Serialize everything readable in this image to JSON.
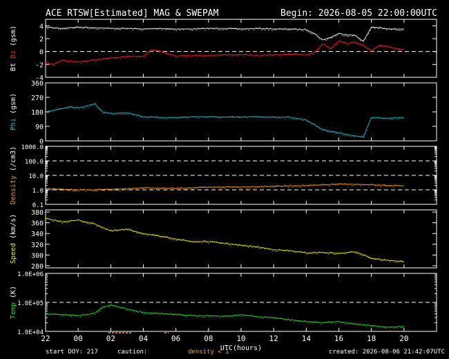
{
  "header": {
    "title": "ACE RTSW[Estimated] MAG & SWEPAM",
    "begin": "Begin: 2026-08-05 22:00:00UTC"
  },
  "footer": {
    "start_doy": "start DOY: 217",
    "caution": "caution:",
    "density_note": "density < 1",
    "created": "created: 2026-08-06 21:42:07UTC"
  },
  "colors": {
    "bt": "#ffffff",
    "bz": "#ff2020",
    "phi": "#22bbdd",
    "density": "#ff9922",
    "speed": "#eeee22",
    "temp": "#33dd33",
    "axes": "#ffffff",
    "caution": "#ff9922"
  },
  "chart_data": [
    {
      "type": "scatter",
      "ylabel_parts": [
        "Bt",
        "Bz",
        "(gsm)"
      ],
      "ylim": [
        -4,
        5
      ],
      "yticks": [
        4,
        2,
        0,
        -2,
        -4
      ],
      "ytick_labels": [
        "4",
        "2",
        "0",
        "-2",
        "-4"
      ],
      "dashed_lines": [
        0
      ],
      "series": [
        {
          "color_key": "bt",
          "x": [
            0,
            1,
            2,
            3,
            4,
            5,
            6,
            7,
            8,
            9,
            10,
            11,
            12,
            13,
            14,
            15,
            16,
            16.5,
            17,
            17.5,
            18,
            18.5,
            19,
            19.5,
            20,
            20.5,
            21,
            21.5,
            22
          ],
          "y": [
            3.8,
            3.6,
            3.8,
            3.7,
            3.6,
            3.6,
            3.5,
            3.6,
            3.5,
            3.5,
            3.6,
            3.6,
            3.5,
            3.6,
            3.5,
            3.5,
            3.4,
            2.8,
            1.8,
            2.2,
            2.8,
            2.6,
            2.5,
            1.6,
            3.8,
            3.7,
            3.5,
            3.5,
            3.5
          ]
        },
        {
          "color_key": "bz",
          "x": [
            0,
            0.5,
            1,
            2,
            3,
            4,
            5,
            6,
            6.5,
            7,
            8,
            9,
            10,
            11,
            12,
            13,
            14,
            15,
            16,
            16.5,
            17,
            17.5,
            18,
            18.5,
            19,
            19.5,
            20,
            20.5,
            21,
            21.5,
            22
          ],
          "y": [
            -1.7,
            -2.0,
            -1.4,
            -1.6,
            -1.3,
            -1.0,
            -0.8,
            -0.7,
            0.3,
            0.1,
            -0.7,
            -0.6,
            -0.6,
            -0.5,
            -0.5,
            -0.6,
            -0.5,
            -0.4,
            -0.5,
            -0.2,
            1.2,
            0.5,
            1.7,
            1.2,
            1.5,
            0.9,
            0.1,
            1.0,
            0.8,
            0.5,
            0.3
          ]
        }
      ]
    },
    {
      "type": "scatter",
      "ylabel_parts": [
        "Phi",
        "(gsm)"
      ],
      "ylim": [
        0,
        360
      ],
      "yticks": [
        360,
        270,
        180,
        90,
        0
      ],
      "ytick_labels": [
        "360",
        "270",
        "180",
        "90",
        "0"
      ],
      "dashed_lines": [],
      "series": [
        {
          "color_key": "phi",
          "x": [
            0,
            0.5,
            1,
            1.5,
            2,
            2.5,
            3,
            3.5,
            4,
            5,
            6,
            7,
            8,
            9,
            10,
            11,
            12,
            13,
            14,
            15,
            16,
            16.5,
            17,
            17.5,
            18,
            18.5,
            19,
            19.5,
            20,
            20.5,
            21,
            21.5,
            22
          ],
          "y": [
            180,
            190,
            200,
            210,
            205,
            215,
            230,
            180,
            170,
            175,
            150,
            145,
            145,
            150,
            150,
            148,
            148,
            150,
            148,
            146,
            130,
            100,
            70,
            60,
            50,
            40,
            30,
            25,
            145,
            142,
            140,
            145,
            145
          ]
        }
      ]
    },
    {
      "type": "scatter",
      "log_scale": true,
      "ylabel_parts": [
        "Density",
        "(/cm3)"
      ],
      "ylim": [
        0.1,
        1000
      ],
      "yticks": [
        1000,
        100,
        10,
        1,
        0.1
      ],
      "ytick_labels": [
        "1000.0",
        "100.0",
        "10.0",
        "1.0",
        "0.1"
      ],
      "dashed_lines": [
        100,
        10,
        1
      ],
      "series": [
        {
          "color_key": "density",
          "x": [
            0,
            1,
            2,
            3,
            4,
            5,
            6,
            7,
            8,
            9,
            10,
            11,
            12,
            13,
            14,
            15,
            16,
            17,
            18,
            19,
            20,
            21,
            22
          ],
          "y": [
            1.2,
            1.1,
            1.0,
            1.0,
            1.1,
            1.2,
            1.4,
            1.3,
            1.3,
            1.4,
            1.5,
            1.6,
            1.6,
            1.7,
            1.8,
            1.9,
            2.0,
            2.2,
            2.5,
            2.4,
            2.2,
            2.0,
            1.9
          ]
        }
      ]
    },
    {
      "type": "scatter",
      "ylabel_parts": [
        "Speed",
        "(km/s)"
      ],
      "ylim": [
        276,
        384
      ],
      "yticks": [
        380,
        360,
        340,
        320,
        300,
        280
      ],
      "ytick_labels": [
        "380",
        "360",
        "340",
        "320",
        "300",
        "280"
      ],
      "dashed_lines": [],
      "series": [
        {
          "color_key": "speed",
          "x": [
            0,
            1,
            2,
            3,
            4,
            5,
            6,
            7,
            8,
            9,
            10,
            11,
            12,
            13,
            14,
            15,
            16,
            17,
            18,
            19,
            19.5,
            20,
            21,
            22
          ],
          "y": [
            368,
            362,
            365,
            358,
            345,
            348,
            340,
            335,
            330,
            325,
            325,
            322,
            318,
            315,
            310,
            308,
            304,
            305,
            303,
            306,
            301,
            294,
            290,
            288
          ]
        }
      ]
    },
    {
      "type": "scatter",
      "log_scale": true,
      "ylabel_parts": [
        "Temp",
        "(K)"
      ],
      "ylim": [
        10000,
        1000000
      ],
      "yticks": [
        1000000,
        100000,
        10000
      ],
      "ytick_labels": [
        "1.0E+06",
        "1.0E+05",
        "1.0E+04"
      ],
      "dashed_lines": [
        100000
      ],
      "series": [
        {
          "color_key": "temp",
          "x": [
            0,
            1,
            2,
            3,
            3.5,
            4,
            5,
            6,
            7,
            8,
            9,
            10,
            11,
            12,
            13,
            14,
            15,
            16,
            17,
            18,
            19,
            20,
            21,
            22
          ],
          "y": [
            40000,
            38000,
            35000,
            42000,
            70000,
            80000,
            60000,
            45000,
            42000,
            38000,
            35000,
            35000,
            33000,
            38000,
            32000,
            30000,
            25000,
            22000,
            20000,
            22000,
            18000,
            16000,
            14000,
            15000
          ]
        }
      ]
    }
  ],
  "x_axis": {
    "xlim": [
      0,
      24
    ],
    "ticks": [
      0,
      2,
      4,
      6,
      8,
      10,
      12,
      14,
      16,
      18,
      20,
      22
    ],
    "tick_labels": [
      "22",
      "00",
      "02",
      "04",
      "06",
      "08",
      "10",
      "12",
      "14",
      "16",
      "18",
      "20"
    ],
    "label": "UTC(hours)"
  }
}
